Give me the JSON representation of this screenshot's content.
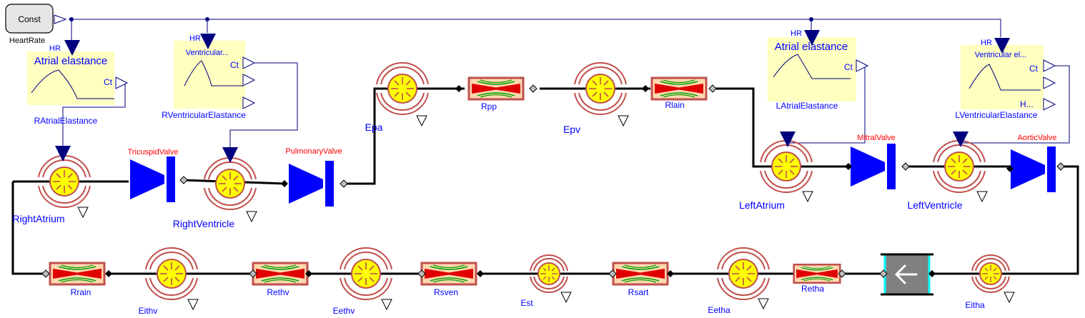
{
  "const_block": {
    "label": "Const",
    "name": "HeartRate"
  },
  "elastance_blocks": {
    "right_atrial": {
      "title": "Atrial elastance",
      "input": "HR",
      "out1": "Ct",
      "name": "RAtrialElastance"
    },
    "right_ventricular": {
      "title": "Ventricular...",
      "input": "HR",
      "out1": "Ct",
      "name": "RVentricularElastance"
    },
    "left_atrial": {
      "title": "Atrial elastance",
      "input": "HR",
      "out1": "Ct",
      "name": "LAtrialElastance"
    },
    "left_ventricular": {
      "title": "Ventricular el...",
      "input": "HR",
      "out1": "Ct",
      "out3": "H...",
      "name": "LVentricularElastance"
    }
  },
  "chambers": {
    "right_atrium": "RightAtrium",
    "right_ventricle": "RightVentricle",
    "left_atrium": "LeftAtrium",
    "left_ventricle": "LeftVentricle"
  },
  "valves": {
    "tricuspid": "TricuspidValve",
    "pulmonary": "PulmonaryValve",
    "mitral": "MitralValve",
    "aortic": "AorticValve"
  },
  "compliances": {
    "epa": "Epa",
    "epv": "Epv",
    "eitha": "Eitha",
    "eetha": "Eetha",
    "est": "Est",
    "eethv": "Eethv",
    "eithv": "Eithv"
  },
  "resistors": {
    "rpp": "Rpp",
    "rlain": "Rlain",
    "retha": "Retha",
    "rsart": "Rsart",
    "rsven": "Rsven",
    "rethv": "Rethv",
    "rrain": "Rrain"
  },
  "colors": {
    "wire": "#000000",
    "signal": "#00007f",
    "label_blue": "#0000ff",
    "label_red": "#ff0000",
    "valve": "#0000ff",
    "block_fill": "#ffffbf",
    "chamber_ring": "#c0504d",
    "chamber_fill": "#ffff00",
    "resistor_fill": "#ffd8b0",
    "resistor_core": "#e00000",
    "resistor_green": "#00a000",
    "pump_fill": "#808080",
    "pump_border": "#00ffff"
  }
}
